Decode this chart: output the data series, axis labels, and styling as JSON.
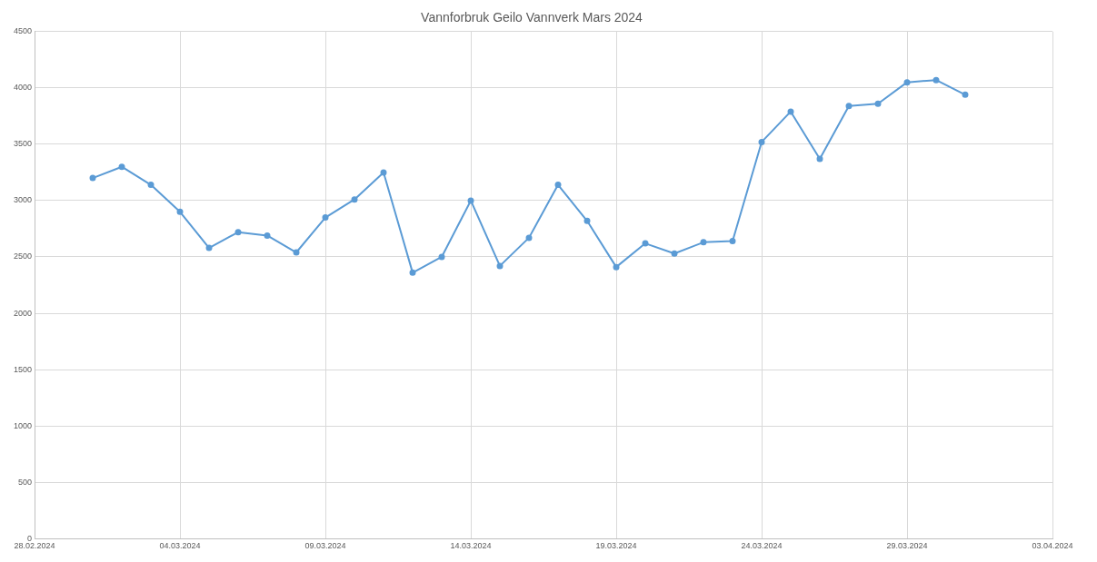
{
  "chart_data": {
    "type": "line",
    "title": "Vannforbruk Geilo Vannverk Mars 2024",
    "x": [
      "2024-03-01",
      "2024-03-02",
      "2024-03-03",
      "2024-03-04",
      "2024-03-05",
      "2024-03-06",
      "2024-03-07",
      "2024-03-08",
      "2024-03-09",
      "2024-03-10",
      "2024-03-11",
      "2024-03-12",
      "2024-03-13",
      "2024-03-14",
      "2024-03-15",
      "2024-03-16",
      "2024-03-17",
      "2024-03-18",
      "2024-03-19",
      "2024-03-20",
      "2024-03-21",
      "2024-03-22",
      "2024-03-23",
      "2024-03-24",
      "2024-03-25",
      "2024-03-26",
      "2024-03-27",
      "2024-03-28",
      "2024-03-29",
      "2024-03-30",
      "2024-03-31"
    ],
    "series": [
      {
        "color": "#5b9bd5",
        "values": [
          3200,
          3300,
          3140,
          2900,
          2580,
          2720,
          2690,
          2540,
          2850,
          3010,
          3250,
          2360,
          2500,
          3000,
          2420,
          2670,
          3140,
          2820,
          2410,
          2620,
          2530,
          2630,
          2640,
          3520,
          3790,
          3370,
          3840,
          3860,
          4050,
          4070,
          3940
        ]
      }
    ],
    "xlim": [
      "2024-02-28",
      "2024-04-03"
    ],
    "xticks": [
      {
        "value": "2024-02-28",
        "label": "28.02.2024"
      },
      {
        "value": "2024-03-04",
        "label": "04.03.2024"
      },
      {
        "value": "2024-03-09",
        "label": "09.03.2024"
      },
      {
        "value": "2024-03-14",
        "label": "14.03.2024"
      },
      {
        "value": "2024-03-19",
        "label": "19.03.2024"
      },
      {
        "value": "2024-03-24",
        "label": "24.03.2024"
      },
      {
        "value": "2024-03-29",
        "label": "29.03.2024"
      },
      {
        "value": "2024-04-03",
        "label": "03.04.2024"
      }
    ],
    "ylim": [
      0,
      4500
    ],
    "yticks": [
      0,
      500,
      1000,
      1500,
      2000,
      2500,
      3000,
      3500,
      4000,
      4500
    ],
    "grid": true,
    "marker": "circle",
    "line_style": "solid",
    "legend": false
  }
}
